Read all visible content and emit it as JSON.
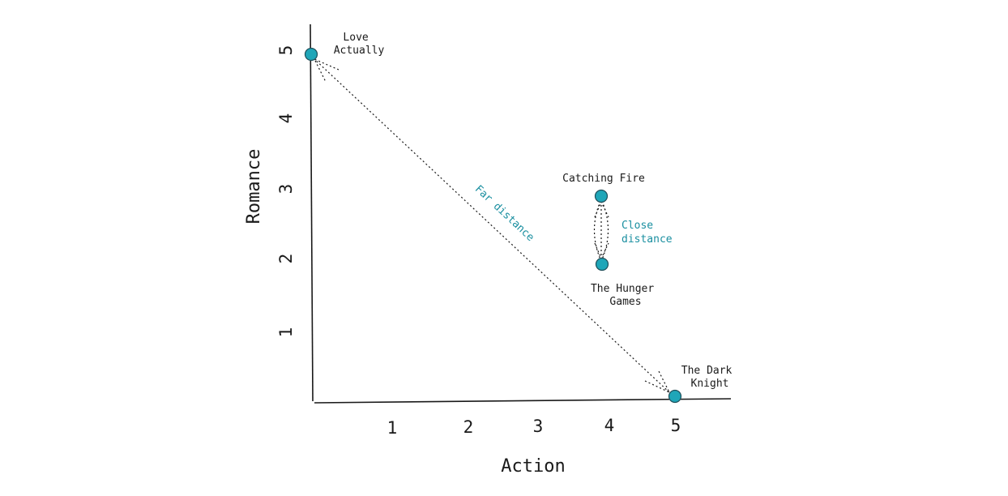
{
  "colors": {
    "point": "#1fa6b8",
    "accent": "#1a8fa0",
    "ink": "#1a1a1a"
  },
  "axes": {
    "x": {
      "title": "Action",
      "ticks": [
        "1",
        "2",
        "3",
        "4",
        "5"
      ]
    },
    "y": {
      "title": "Romance",
      "ticks": [
        "1",
        "2",
        "3",
        "4",
        "5"
      ]
    }
  },
  "points": [
    {
      "id": "love-actually",
      "lines": [
        "Love",
        "Actually"
      ]
    },
    {
      "id": "catching-fire",
      "lines": [
        "Catching Fire"
      ]
    },
    {
      "id": "hunger-games",
      "lines": [
        "The Hunger",
        "Games"
      ]
    },
    {
      "id": "dark-knight",
      "lines": [
        "The Dark",
        "Knight"
      ]
    }
  ],
  "annotations": {
    "far": "Far distance",
    "close": [
      "Close",
      "distance"
    ]
  }
}
